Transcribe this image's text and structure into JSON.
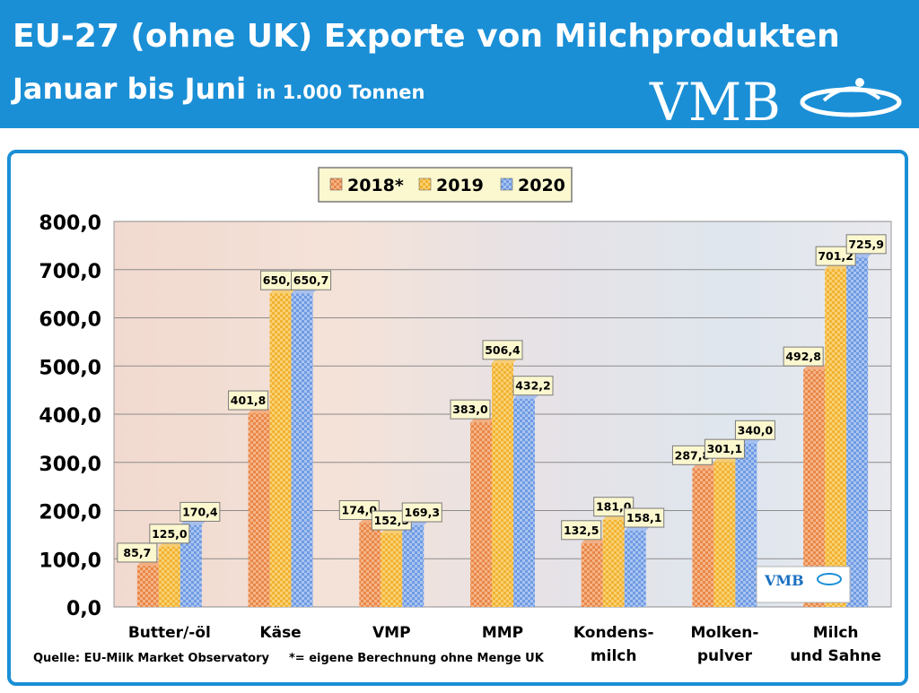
{
  "header": {
    "title_line1": "EU-27 (ohne UK) Exporte von Milchprodukten",
    "title_line2": "Januar bis Juni",
    "title_unit": "in 1.000 Tonnen",
    "logo": "VMB"
  },
  "footer": {
    "source": "Quelle: EU-Milk Market Observatory",
    "footnote": "*= eigene Berechnung ohne Menge UK"
  },
  "colors": {
    "header_bg": "#1a8fd6",
    "series_2018": "#e8884a",
    "series_2019": "#f2b233",
    "series_2020": "#6f9be3"
  },
  "chart_data": {
    "type": "bar",
    "title": "EU-27 (ohne UK) Exporte von Milchprodukten Januar bis Juni in 1.000 Tonnen",
    "categories": [
      [
        "Butter/-öl"
      ],
      [
        "Käse"
      ],
      [
        "VMP"
      ],
      [
        "MMP"
      ],
      [
        "Kondens-",
        "milch"
      ],
      [
        "Molken-",
        "pulver"
      ],
      [
        "Milch",
        "und Sahne"
      ]
    ],
    "series": [
      {
        "name": "2018*",
        "values": [
          85.7,
          401.8,
          174.0,
          383.0,
          132.5,
          287.8,
          492.8
        ]
      },
      {
        "name": "2019",
        "values": [
          125.0,
          650.8,
          152.5,
          506.4,
          181.0,
          301.1,
          701.2
        ]
      },
      {
        "name": "2020",
        "values": [
          170.4,
          650.7,
          169.3,
          432.2,
          158.1,
          340.0,
          725.9
        ]
      }
    ],
    "ylim": [
      0,
      800
    ],
    "yticks": [
      "0,0",
      "100,0",
      "200,0",
      "300,0",
      "400,0",
      "500,0",
      "600,0",
      "700,0",
      "800,0"
    ],
    "value_labels": [
      [
        "85,7",
        "401,8",
        "174,0",
        "383,0",
        "132,5",
        "287,8",
        "492,8"
      ],
      [
        "125,0",
        "650,8",
        "152,5",
        "506,4",
        "181,0",
        "301,1",
        "701,2"
      ],
      [
        "170,4",
        "650,7",
        "169,3",
        "432,2",
        "158,1",
        "340,0",
        "725,9"
      ]
    ],
    "legend_position": "top-center",
    "grid": true
  }
}
